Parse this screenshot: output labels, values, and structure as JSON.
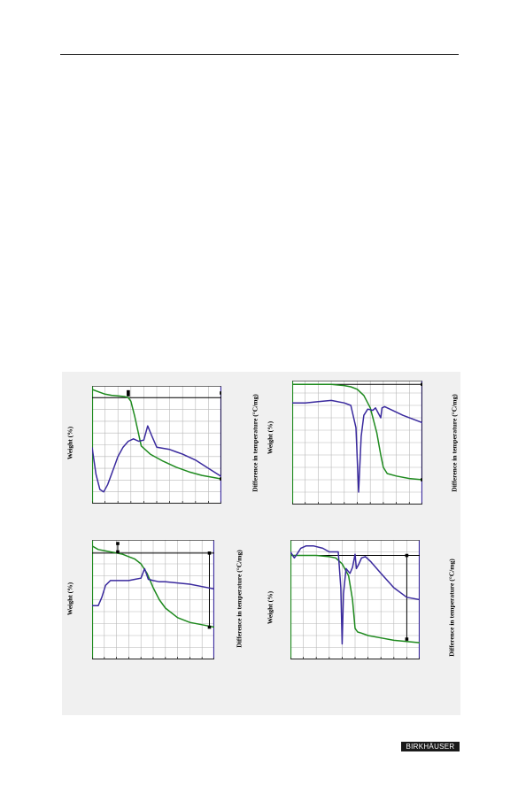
{
  "publisher": "BIRKHÄUSER",
  "colors": {
    "weight_curve": "#1e8a1e",
    "dta_curve": "#3a2a9e",
    "panel_bg": "#f0f0f0",
    "grid": "#b8b8b8"
  },
  "chart_data": [
    {
      "type": "line",
      "title": "",
      "xlabel": "",
      "ylabel": "Weight (%)",
      "y2label": "Difference in temperature (°C/mg)",
      "grid": true,
      "xlim": [
        0,
        1
      ],
      "ylim": [
        0,
        1
      ],
      "series": [
        {
          "x": [
            0.0,
            0.05,
            0.1,
            0.15,
            0.2,
            0.25,
            0.28,
            0.3,
            0.33,
            0.38,
            0.45,
            0.55,
            0.65,
            0.75,
            0.85,
            0.95,
            1.0
          ],
          "y": [
            0.97,
            0.95,
            0.93,
            0.92,
            0.915,
            0.91,
            0.9,
            0.87,
            0.74,
            0.49,
            0.42,
            0.36,
            0.31,
            0.27,
            0.24,
            0.22,
            0.21
          ]
        },
        {
          "x": [
            0.0,
            0.03,
            0.06,
            0.09,
            0.12,
            0.16,
            0.2,
            0.24,
            0.28,
            0.32,
            0.36,
            0.4,
            0.43,
            0.46,
            0.5,
            0.55,
            0.6,
            0.65,
            0.7,
            0.8,
            0.9,
            1.0
          ],
          "y": [
            0.48,
            0.25,
            0.12,
            0.1,
            0.16,
            0.28,
            0.4,
            0.48,
            0.53,
            0.55,
            0.53,
            0.54,
            0.66,
            0.58,
            0.48,
            0.47,
            0.46,
            0.44,
            0.42,
            0.37,
            0.3,
            0.23
          ]
        }
      ],
      "markers": [
        {
          "x": 0.28,
          "y": 0.95
        },
        {
          "x": 0.28,
          "y": 0.925
        },
        {
          "x": 1.0,
          "y": 0.94
        },
        {
          "x": 1.0,
          "y": 0.21
        }
      ],
      "hline_y": 0.9
    },
    {
      "type": "line",
      "title": "",
      "xlabel": "",
      "ylabel": "Weight (%)",
      "y2label": "Difference in temperature (°C/mg)",
      "grid": true,
      "xlim": [
        0,
        1
      ],
      "ylim": [
        0,
        1
      ],
      "series": [
        {
          "x": [
            0.0,
            0.1,
            0.2,
            0.3,
            0.4,
            0.45,
            0.5,
            0.55,
            0.6,
            0.65,
            0.68,
            0.7,
            0.73,
            0.8,
            0.9,
            1.0
          ],
          "y": [
            0.97,
            0.97,
            0.97,
            0.97,
            0.96,
            0.95,
            0.93,
            0.88,
            0.78,
            0.58,
            0.4,
            0.3,
            0.25,
            0.23,
            0.21,
            0.2
          ]
        },
        {
          "x": [
            0.0,
            0.1,
            0.2,
            0.3,
            0.4,
            0.45,
            0.49,
            0.51,
            0.53,
            0.55,
            0.58,
            0.62,
            0.64,
            0.66,
            0.68,
            0.69,
            0.71,
            0.75,
            0.85,
            1.0
          ],
          "y": [
            0.82,
            0.82,
            0.83,
            0.84,
            0.82,
            0.8,
            0.62,
            0.1,
            0.55,
            0.72,
            0.77,
            0.76,
            0.78,
            0.74,
            0.7,
            0.78,
            0.79,
            0.77,
            0.72,
            0.66
          ]
        }
      ],
      "markers": [
        {
          "x": 1.0,
          "y": 0.97
        },
        {
          "x": 1.0,
          "y": 0.2
        }
      ],
      "hline_y": 0.97
    },
    {
      "type": "line",
      "title": "",
      "xlabel": "",
      "ylabel": "Weight (%)",
      "y2label": "Difference in temperature (°C/mg)",
      "grid": true,
      "xlim": [
        0,
        1
      ],
      "ylim": [
        0,
        1
      ],
      "series": [
        {
          "x": [
            0.0,
            0.05,
            0.1,
            0.15,
            0.2,
            0.25,
            0.3,
            0.35,
            0.4,
            0.45,
            0.5,
            0.55,
            0.6,
            0.7,
            0.8,
            0.9,
            0.95,
            1.0
          ],
          "y": [
            0.95,
            0.92,
            0.91,
            0.9,
            0.89,
            0.88,
            0.86,
            0.84,
            0.8,
            0.72,
            0.6,
            0.5,
            0.43,
            0.35,
            0.31,
            0.29,
            0.28,
            0.27
          ]
        },
        {
          "x": [
            0.0,
            0.05,
            0.08,
            0.11,
            0.15,
            0.2,
            0.25,
            0.3,
            0.35,
            0.4,
            0.43,
            0.46,
            0.5,
            0.55,
            0.6,
            0.7,
            0.8,
            0.9,
            1.0
          ],
          "y": [
            0.45,
            0.45,
            0.52,
            0.62,
            0.66,
            0.66,
            0.66,
            0.66,
            0.67,
            0.68,
            0.76,
            0.67,
            0.66,
            0.65,
            0.65,
            0.64,
            0.63,
            0.61,
            0.59
          ]
        }
      ],
      "markers": [
        {
          "x": 0.21,
          "y": 0.97
        },
        {
          "x": 0.21,
          "y": 0.9
        },
        {
          "x": 0.96,
          "y": 0.89
        },
        {
          "x": 0.96,
          "y": 0.27
        }
      ],
      "hline_y": 0.89
    },
    {
      "type": "line",
      "title": "",
      "xlabel": "",
      "ylabel": "Weight (%)",
      "y2label": "Difference in temperature (°C/mg)",
      "grid": true,
      "xlim": [
        0,
        1
      ],
      "ylim": [
        0,
        1
      ],
      "series": [
        {
          "x": [
            0.0,
            0.1,
            0.2,
            0.3,
            0.35,
            0.4,
            0.45,
            0.48,
            0.5,
            0.52,
            0.55,
            0.6,
            0.7,
            0.8,
            0.9,
            1.0
          ],
          "y": [
            0.87,
            0.87,
            0.87,
            0.86,
            0.85,
            0.8,
            0.7,
            0.5,
            0.26,
            0.23,
            0.22,
            0.2,
            0.18,
            0.16,
            0.15,
            0.14
          ]
        },
        {
          "x": [
            0.0,
            0.03,
            0.05,
            0.08,
            0.12,
            0.18,
            0.25,
            0.3,
            0.37,
            0.39,
            0.4,
            0.41,
            0.43,
            0.46,
            0.48,
            0.5,
            0.51,
            0.53,
            0.55,
            0.58,
            0.62,
            0.7,
            0.8,
            0.9,
            1.0
          ],
          "y": [
            0.9,
            0.85,
            0.88,
            0.93,
            0.95,
            0.95,
            0.93,
            0.9,
            0.9,
            0.6,
            0.13,
            0.55,
            0.76,
            0.72,
            0.77,
            0.88,
            0.76,
            0.8,
            0.85,
            0.86,
            0.82,
            0.72,
            0.6,
            0.52,
            0.5
          ]
        }
      ],
      "markers": [
        {
          "x": 0.9,
          "y": 0.87
        },
        {
          "x": 0.9,
          "y": 0.17
        }
      ],
      "hline_y": 0.87
    }
  ]
}
